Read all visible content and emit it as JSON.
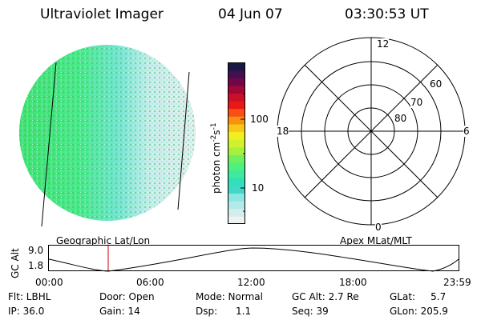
{
  "header": {
    "instrument": "Ultraviolet Imager",
    "date": "04 Jun 07",
    "time": "03:30:53 UT"
  },
  "colorbar": {
    "unit_label": "photon cm",
    "unit_exp1": "-2",
    "unit_s": "s",
    "unit_exp2": "-1",
    "tick_100": "100",
    "tick_10": "10",
    "colors": [
      "#eef2f2",
      "#d6ecec",
      "#b2eaea",
      "#8ce6e2",
      "#42d8c8",
      "#30e0b8",
      "#40e8a0",
      "#50f080",
      "#70f060",
      "#a8f040",
      "#d0f030",
      "#f0f020",
      "#f8c818",
      "#f89010",
      "#f85010",
      "#e81818",
      "#c81028",
      "#a00838",
      "#700848",
      "#401050",
      "#181840"
    ]
  },
  "polar": {
    "mlt_12": "12",
    "mlt_18": "18",
    "mlt_6": "6",
    "mlt_0": "0",
    "lat_60": "60",
    "lat_70": "70",
    "lat_80": "80"
  },
  "orbit": {
    "ylabel": "GC Alt",
    "ytick_high": "9.0",
    "ytick_low": "1.8",
    "left_label": "Geographic Lat/Lon",
    "right_label": "Apex  MLat/MLT",
    "xticks": [
      "00:00",
      "06:00",
      "12:00",
      "18:00",
      "23:59"
    ],
    "marker_color": "#cc0000"
  },
  "info": {
    "flt": "Flt: LBHL",
    "ip": "IP: 36.0",
    "door": "Door: Open",
    "gain": "Gain: 14",
    "mode": "Mode: Normal",
    "dsp": "Dsp:      1.1",
    "gc_alt": "GC Alt: 2.7 Re",
    "seq": "Seq: 39",
    "glat": "GLat:     5.7",
    "glon": "GLon: 205.9"
  }
}
